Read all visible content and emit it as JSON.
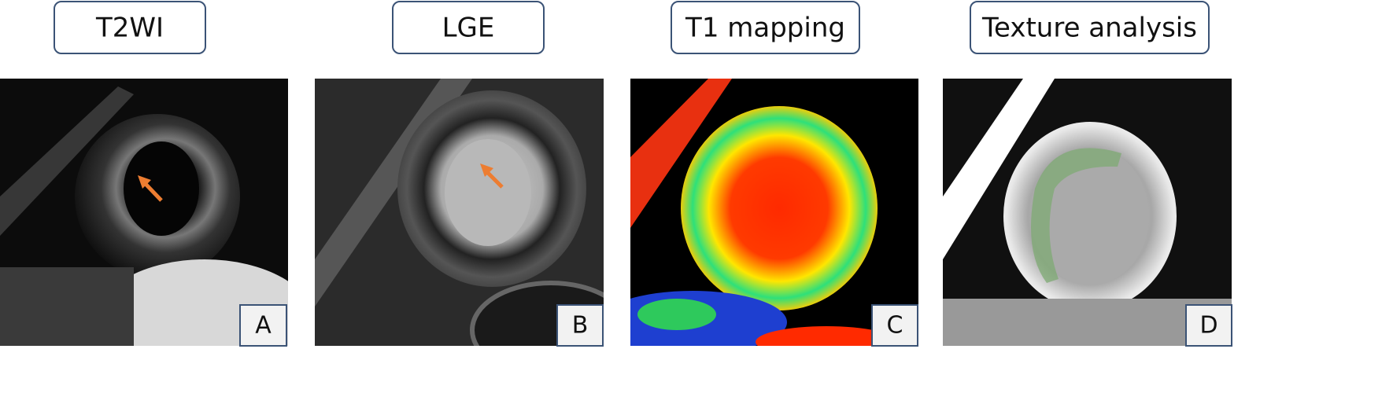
{
  "panels": [
    {
      "title": "T2WI",
      "letter": "A"
    },
    {
      "title": "LGE",
      "letter": "B"
    },
    {
      "title": "T1 mapping",
      "letter": "C"
    },
    {
      "title": "Texture analysis",
      "letter": "D"
    }
  ]
}
